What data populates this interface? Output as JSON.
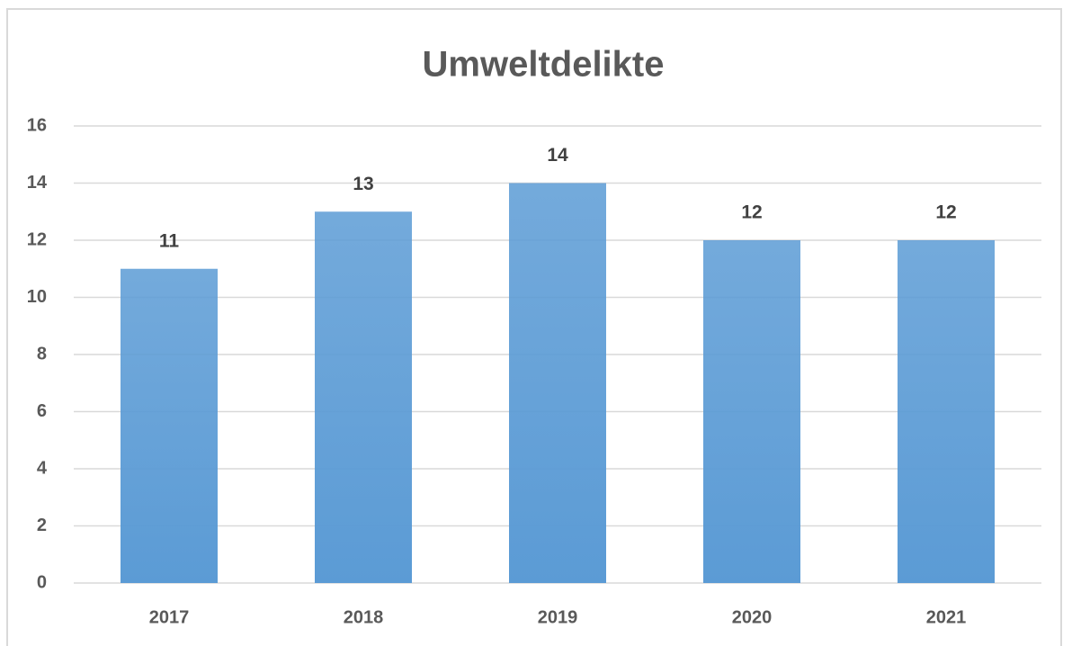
{
  "chart_data": {
    "type": "bar",
    "title": "Umweltdelikte",
    "categories": [
      "2017",
      "2018",
      "2019",
      "2020",
      "2021"
    ],
    "values": [
      11,
      13,
      14,
      12,
      12
    ],
    "color": "#5b9bd5",
    "ylim": [
      0,
      16
    ],
    "yticks": [
      0,
      2,
      4,
      6,
      8,
      10,
      12,
      14,
      16
    ],
    "grid": true
  }
}
